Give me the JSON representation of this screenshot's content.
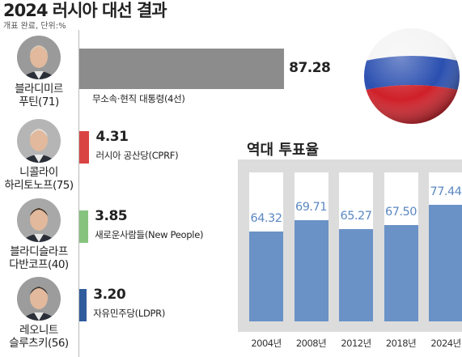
{
  "title": "2024 러시아 대선 결과",
  "subtitle": "개표 완료, 단위:%",
  "colors": {
    "putin": "#8c8c8c",
    "cprf": "#d94443",
    "new_people": "#86c47e",
    "ldpr": "#2f5c9c",
    "turnout_bar": "#6a92c6",
    "turnout_label": "#5b88c2"
  },
  "candidates": [
    {
      "name_line1": "블라디미르",
      "name_line2": "푸틴(71)",
      "party": "무소속·현직 대통령(4선)",
      "pct": "87.28",
      "icon": "portrait-icon"
    },
    {
      "name_line1": "니콜라이",
      "name_line2": "하리토노프(75)",
      "party": "러시아 공산당(CPRF)",
      "pct": "4.31",
      "icon": "portrait-icon"
    },
    {
      "name_line1": "블라디슬라프",
      "name_line2": "다반코프(40)",
      "party": "새로운사람들(New People)",
      "pct": "3.85",
      "icon": "portrait-icon"
    },
    {
      "name_line1": "레오니트",
      "name_line2": "슬루츠키(56)",
      "party": "자유민주당(LDPR)",
      "pct": "3.20",
      "icon": "portrait-icon"
    }
  ],
  "flag_ball_icon": "russian-flag-ball-icon",
  "turnout": {
    "title": "역대 투표율"
  },
  "chart_data": [
    {
      "type": "bar",
      "orientation": "horizontal",
      "categories": [
        "블라디미르 푸틴(71)",
        "니콜라이 하리토노프(75)",
        "블라디슬라프 다반코프(40)",
        "레오니트 슬루츠키(56)"
      ],
      "values": [
        87.28,
        4.31,
        3.85,
        3.2
      ],
      "title": "2024 러시아 대선 결과",
      "xlim": [
        0,
        100
      ]
    },
    {
      "type": "bar",
      "categories": [
        "2004년",
        "2008년",
        "2012년",
        "2018년",
        "2024년"
      ],
      "values": [
        64.32,
        69.71,
        65.27,
        67.5,
        77.44
      ],
      "labels": [
        "64.32",
        "69.71",
        "65.27",
        "67.50",
        "77.44"
      ],
      "title": "역대 투표율",
      "ylim": [
        0,
        100
      ]
    }
  ]
}
